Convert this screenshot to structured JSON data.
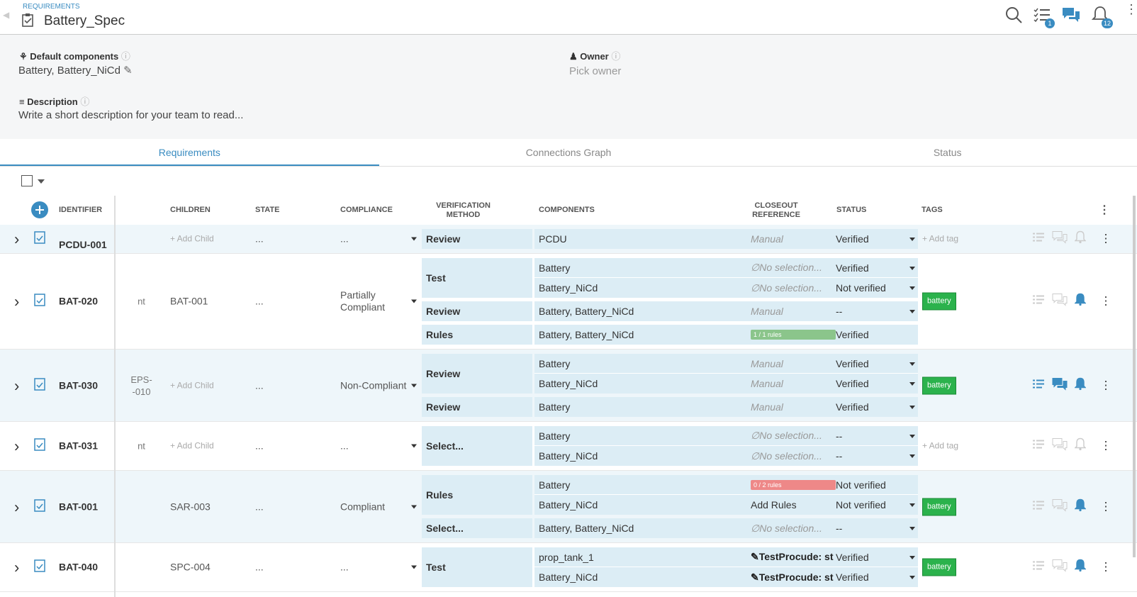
{
  "header": {
    "section": "REQUIREMENTS",
    "title": "Battery_Spec",
    "tasks_badge": "1",
    "notifications_badge": "12"
  },
  "fields": {
    "components_label": "Default components",
    "components_value": "Battery, Battery_NiCd",
    "owner_label": "Owner",
    "owner_value": "Pick owner",
    "description_label": "Description",
    "description_value": "Write a short description for your team to read..."
  },
  "tabs": [
    "Requirements",
    "Connections Graph",
    "Status"
  ],
  "table": {
    "columns": {
      "identifier": "IDENTIFIER",
      "children": "CHILDREN",
      "state": "STATE",
      "compliance": "COMPLIANCE",
      "method": "VERIFICATION\nMETHOD",
      "components": "COMPONENTS",
      "closeout": "CLOSEOUT\nREFERENCE",
      "status": "STATUS",
      "tags": "TAGS"
    },
    "rows": [
      {
        "id": "PCDU-001",
        "parent": "",
        "child": "+ Add Child",
        "child_placeholder": true,
        "state": "...",
        "compliance": "...",
        "tag": "+ Add tag",
        "tag_badge": false,
        "icons_active": [
          false,
          false,
          false
        ],
        "groups": [
          {
            "method": "Review",
            "lines": [
              {
                "component": "PCDU",
                "closeout": "Manual",
                "closeout_kind": "manual",
                "status": "Verified",
                "dropdown": true
              }
            ]
          }
        ]
      },
      {
        "id": "BAT-020",
        "parent": "nt",
        "child": "BAT-001",
        "child_placeholder": false,
        "state": "...",
        "compliance": "Partially\nCompliant",
        "tag": "battery",
        "tag_badge": true,
        "icons_active": [
          false,
          false,
          true
        ],
        "groups": [
          {
            "method": "Test",
            "lines": [
              {
                "component": "Battery",
                "closeout": "No selection...",
                "closeout_kind": "none",
                "status": "Verified",
                "dropdown": true
              },
              {
                "component": "Battery_NiCd",
                "closeout": "No selection...",
                "closeout_kind": "none",
                "status": "Not verified",
                "dropdown": true
              }
            ]
          },
          {
            "method": "Review",
            "lines": [
              {
                "component": "Battery, Battery_NiCd",
                "closeout": "Manual",
                "closeout_kind": "manual",
                "status": "--",
                "dropdown": true
              }
            ]
          },
          {
            "method": "Rules",
            "lines": [
              {
                "component": "Battery, Battery_NiCd",
                "closeout": "1 / 1 rules",
                "closeout_kind": "rules-ok",
                "status": "Verified",
                "dropdown": false
              }
            ]
          }
        ]
      },
      {
        "id": "BAT-030",
        "parent": "EPS-\n-010",
        "child": "+ Add Child",
        "child_placeholder": true,
        "state": "...",
        "compliance": "Non-Compliant",
        "tag": "battery",
        "tag_badge": true,
        "icons_active": [
          true,
          true,
          true
        ],
        "groups": [
          {
            "method": "Review",
            "lines": [
              {
                "component": "Battery",
                "closeout": "Manual",
                "closeout_kind": "manual",
                "status": "Verified",
                "dropdown": true
              },
              {
                "component": "Battery_NiCd",
                "closeout": "Manual",
                "closeout_kind": "manual",
                "status": "Verified",
                "dropdown": true
              }
            ]
          },
          {
            "method": "Review",
            "lines": [
              {
                "component": "Battery",
                "closeout": "Manual",
                "closeout_kind": "manual",
                "status": "Verified",
                "dropdown": true
              }
            ]
          }
        ]
      },
      {
        "id": "BAT-031",
        "parent": "nt",
        "child": "+ Add Child",
        "child_placeholder": true,
        "state": "...",
        "compliance": "...",
        "tag": "+ Add tag",
        "tag_badge": false,
        "icons_active": [
          false,
          false,
          false
        ],
        "groups": [
          {
            "method": "Select...",
            "lines": [
              {
                "component": "Battery",
                "closeout": "No selection...",
                "closeout_kind": "none",
                "status": "--",
                "dropdown": true
              },
              {
                "component": "Battery_NiCd",
                "closeout": "No selection...",
                "closeout_kind": "none",
                "status": "--",
                "dropdown": true
              }
            ]
          }
        ]
      },
      {
        "id": "BAT-001",
        "parent": "",
        "child": "SAR-003",
        "child_placeholder": false,
        "state": "...",
        "compliance": "Compliant",
        "tag": "battery",
        "tag_badge": true,
        "icons_active": [
          false,
          false,
          true
        ],
        "groups": [
          {
            "method": "Rules",
            "lines": [
              {
                "component": "Battery",
                "closeout": "0 / 2 rules",
                "closeout_kind": "rules-fail",
                "status": "Not verified",
                "dropdown": false
              },
              {
                "component": "Battery_NiCd",
                "closeout": "Add Rules",
                "closeout_kind": "action",
                "status": "Not verified",
                "dropdown": true
              }
            ]
          },
          {
            "method": "Select...",
            "lines": [
              {
                "component": "Battery, Battery_NiCd",
                "closeout": "No selection...",
                "closeout_kind": "none",
                "status": "--",
                "dropdown": true
              }
            ]
          }
        ]
      },
      {
        "id": "BAT-040",
        "parent": "",
        "child": "SPC-004",
        "child_placeholder": false,
        "state": "...",
        "compliance": "...",
        "tag": "battery",
        "tag_badge": true,
        "icons_active": [
          false,
          false,
          true
        ],
        "groups": [
          {
            "method": "Test",
            "lines": [
              {
                "component": "prop_tank_1",
                "closeout": "TestProcude: st",
                "closeout_kind": "link",
                "status": "Verified",
                "dropdown": true
              },
              {
                "component": "Battery_NiCd",
                "closeout": "TestProcude: st",
                "closeout_kind": "link",
                "status": "Verified",
                "dropdown": true
              }
            ]
          }
        ]
      }
    ]
  }
}
